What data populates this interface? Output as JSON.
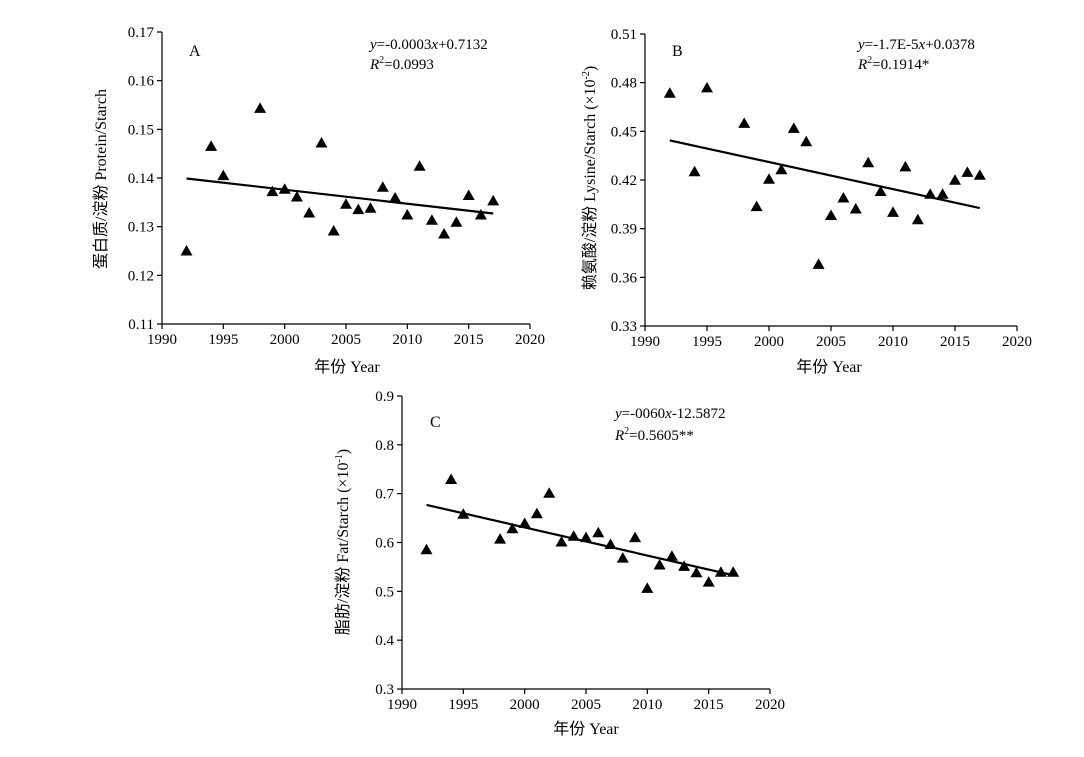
{
  "chart_data": [
    {
      "type": "scatter",
      "panel_label": "A",
      "ylabel": "蛋白质/淀粉 Protein/Starch",
      "xlabel": "年份 Year",
      "xlim": [
        1990,
        2020
      ],
      "ylim": [
        0.11,
        0.17
      ],
      "xticks": [
        1990,
        1995,
        2000,
        2005,
        2010,
        2015,
        2020
      ],
      "xtick_labels": [
        "1990",
        "1995",
        "2000",
        "2005",
        "2010",
        "2015",
        "2020"
      ],
      "yticks": [
        0.11,
        0.12,
        0.13,
        0.14,
        0.15,
        0.16,
        0.17
      ],
      "ytick_labels": [
        "0.11",
        "0.12",
        "0.13",
        "0.14",
        "0.15",
        "0.16",
        "0.17"
      ],
      "equation_line1": "y=-0.0003x+0.7132",
      "equation_line2": "R2=0.0993",
      "eq_parts": {
        "y": "y",
        "mid": "=-0.0003",
        "x": "x",
        "end": "+0.7132",
        "R": "R",
        "sup": "2",
        "val": "=0.0993"
      },
      "trend": {
        "x": [
          1992,
          2017
        ],
        "y": [
          0.1399,
          0.1327
        ]
      },
      "points": [
        [
          1992,
          0.125
        ],
        [
          1994,
          0.1465
        ],
        [
          1995,
          0.1405
        ],
        [
          1998,
          0.1543
        ],
        [
          1999,
          0.1372
        ],
        [
          2000,
          0.1377
        ],
        [
          2001,
          0.1361
        ],
        [
          2002,
          0.1328
        ],
        [
          2003,
          0.1472
        ],
        [
          2004,
          0.1291
        ],
        [
          2005,
          0.1346
        ],
        [
          2006,
          0.1335
        ],
        [
          2007,
          0.1338
        ],
        [
          2008,
          0.1381
        ],
        [
          2009,
          0.1359
        ],
        [
          2010,
          0.1324
        ],
        [
          2011,
          0.1424
        ],
        [
          2012,
          0.1313
        ],
        [
          2013,
          0.1285
        ],
        [
          2014,
          0.1309
        ],
        [
          2015,
          0.1364
        ],
        [
          2016,
          0.1324
        ],
        [
          2017,
          0.1353
        ]
      ]
    },
    {
      "type": "scatter",
      "panel_label": "B",
      "ylabel_main": "赖氨酸/淀粉 Lysine/Starch (×10",
      "ylabel_sup": "-2",
      "ylabel_end": ")",
      "xlabel": "年份 Year",
      "xlim": [
        1990,
        2020
      ],
      "ylim": [
        0.33,
        0.51
      ],
      "xticks": [
        1990,
        1995,
        2000,
        2005,
        2010,
        2015,
        2020
      ],
      "xtick_labels": [
        "1990",
        "1995",
        "2000",
        "2005",
        "2010",
        "2015",
        "2020"
      ],
      "yticks": [
        0.33,
        0.36,
        0.39,
        0.42,
        0.45,
        0.48,
        0.51
      ],
      "ytick_labels": [
        "0.33",
        "0.36",
        "0.39",
        "0.42",
        "0.45",
        "0.48",
        "0.51"
      ],
      "eq_parts": {
        "y": "y",
        "mid": "=-1.7E-5",
        "x": "x",
        "end": "+0.0378",
        "R": "R",
        "sup": "2",
        "val": "=0.1914*"
      },
      "trend": {
        "x": [
          1992,
          2017
        ],
        "y": [
          0.4444,
          0.4027
        ]
      },
      "points": [
        [
          1992,
          0.4735
        ],
        [
          1994,
          0.4251
        ],
        [
          1995,
          0.4768
        ],
        [
          1998,
          0.4549
        ],
        [
          1999,
          0.4036
        ],
        [
          2000,
          0.4205
        ],
        [
          2001,
          0.4263
        ],
        [
          2002,
          0.4518
        ],
        [
          2003,
          0.4436
        ],
        [
          2004,
          0.368
        ],
        [
          2005,
          0.3981
        ],
        [
          2006,
          0.4089
        ],
        [
          2007,
          0.4021
        ],
        [
          2008,
          0.4306
        ],
        [
          2009,
          0.4129
        ],
        [
          2010,
          0.4
        ],
        [
          2011,
          0.4281
        ],
        [
          2012,
          0.3955
        ],
        [
          2013,
          0.4112
        ],
        [
          2014,
          0.4112
        ],
        [
          2015,
          0.4198
        ],
        [
          2016,
          0.4247
        ],
        [
          2017,
          0.4229
        ]
      ]
    },
    {
      "type": "scatter",
      "panel_label": "C",
      "ylabel_main": "脂肪/淀粉 Fat/Starch (×10",
      "ylabel_sup": "-1",
      "ylabel_end": ")",
      "xlabel": "年份 Year",
      "xlim": [
        1990,
        2020
      ],
      "ylim": [
        0.3,
        0.9
      ],
      "xticks": [
        1990,
        1995,
        2000,
        2005,
        2010,
        2015,
        2020
      ],
      "xtick_labels": [
        "1990",
        "1995",
        "2000",
        "2005",
        "2010",
        "2015",
        "2020"
      ],
      "yticks": [
        0.3,
        0.4,
        0.5,
        0.6,
        0.7,
        0.8,
        0.9
      ],
      "ytick_labels": [
        "0.3",
        "0.4",
        "0.5",
        "0.6",
        "0.7",
        "0.8",
        "0.9"
      ],
      "eq_parts": {
        "y": "y",
        "mid": "=-0060",
        "x": "x",
        "end": "-12.5872",
        "R": "R",
        "sup": "2",
        "val": "=0.5605**"
      },
      "trend": {
        "x": [
          1992,
          2017
        ],
        "y": [
          0.677,
          0.533
        ]
      },
      "points": [
        [
          1992,
          0.585
        ],
        [
          1994,
          0.729
        ],
        [
          1995,
          0.658
        ],
        [
          1998,
          0.607
        ],
        [
          1999,
          0.628
        ],
        [
          2000,
          0.639
        ],
        [
          2001,
          0.659
        ],
        [
          2002,
          0.701
        ],
        [
          2003,
          0.601
        ],
        [
          2004,
          0.613
        ],
        [
          2005,
          0.61
        ],
        [
          2006,
          0.62
        ],
        [
          2007,
          0.596
        ],
        [
          2008,
          0.568
        ],
        [
          2009,
          0.61
        ],
        [
          2010,
          0.506
        ],
        [
          2011,
          0.554
        ],
        [
          2012,
          0.572
        ],
        [
          2013,
          0.551
        ],
        [
          2014,
          0.538
        ],
        [
          2015,
          0.519
        ],
        [
          2016,
          0.539
        ],
        [
          2017,
          0.539
        ]
      ]
    }
  ]
}
